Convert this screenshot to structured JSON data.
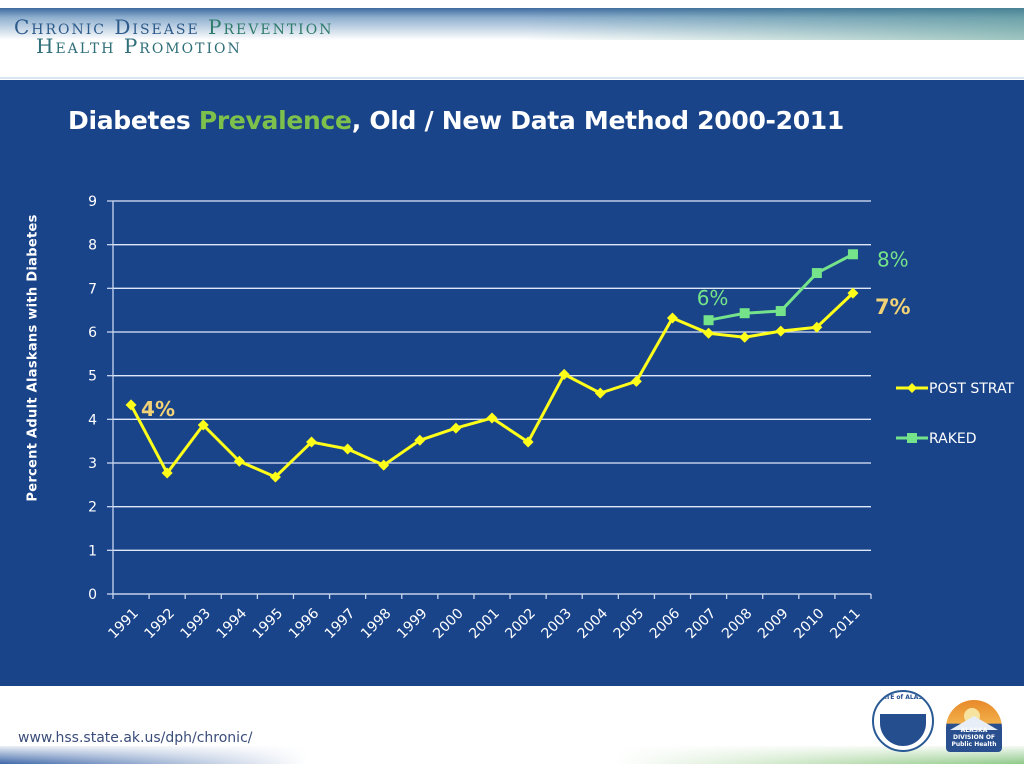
{
  "header": {
    "brand_line1_a": "Chronic Disease ",
    "brand_line1_b": "Prevention",
    "brand_line2": "Health Promotion"
  },
  "title": {
    "part1": "Diabetes ",
    "accent": "Prevalence",
    "part2": ", Old / New Data Method 2000-2011"
  },
  "footer": {
    "url": "www.hss.state.ak.us/dph/chronic/",
    "logo_state_text": "STATE of ALASKA",
    "logo_state_subtext": "Department of Health and Social Services",
    "logo_dph_text_line1": "ALASKA DIVISION OF",
    "logo_dph_text_line2": "Public Health"
  },
  "colors": {
    "background_panel": "#1a448a",
    "post_strat": "#ffff1a",
    "raked": "#74e38a",
    "title_accent": "#7dc04b",
    "label_7pct": "#f2d276",
    "label_4pct": "#f2d276",
    "label_8pct": "#74e38a",
    "label_6pct": "#74e38a",
    "gridline": "#ffffff"
  },
  "chart_data": {
    "type": "line",
    "title": "Diabetes Prevalence, Old / New Data Method 2000-2011",
    "xlabel": "",
    "ylabel": "Percent Adult Alaskans with Diabetes",
    "ylim": [
      0,
      9
    ],
    "yticks": [
      0,
      1,
      2,
      3,
      4,
      5,
      6,
      7,
      8,
      9
    ],
    "grid": true,
    "legend_position": "right",
    "categories": [
      "1991",
      "1992",
      "1993",
      "1994",
      "1995",
      "1996",
      "1997",
      "1998",
      "1999",
      "2000",
      "2001",
      "2002",
      "2003",
      "2004",
      "2005",
      "2006",
      "2007",
      "2008",
      "2009",
      "2010",
      "2011"
    ],
    "series": [
      {
        "name": "POST STRAT",
        "marker": "diamond",
        "color": "#ffff1a",
        "values": [
          4.33,
          2.77,
          3.87,
          3.04,
          2.68,
          3.48,
          3.32,
          2.95,
          3.52,
          3.8,
          4.03,
          3.48,
          5.03,
          4.6,
          4.87,
          6.32,
          5.97,
          5.88,
          6.02,
          6.11,
          6.89
        ]
      },
      {
        "name": "RAKED",
        "marker": "square",
        "color": "#74e38a",
        "values": [
          null,
          null,
          null,
          null,
          null,
          null,
          null,
          null,
          null,
          null,
          null,
          null,
          null,
          null,
          null,
          null,
          6.27,
          6.43,
          6.48,
          7.35,
          7.78
        ]
      }
    ],
    "annotations": [
      {
        "text": "4%",
        "series": "POST STRAT",
        "category": "1991",
        "color": "#f2d276",
        "bold": true
      },
      {
        "text": "6%",
        "series": "RAKED",
        "category": "2007",
        "color": "#74e38a",
        "bold": false
      },
      {
        "text": "8%",
        "series": "RAKED",
        "category": "2011",
        "color": "#74e38a",
        "bold": false
      },
      {
        "text": "7%",
        "series": "POST STRAT",
        "category": "2011",
        "color": "#f2d276",
        "bold": true
      }
    ]
  }
}
